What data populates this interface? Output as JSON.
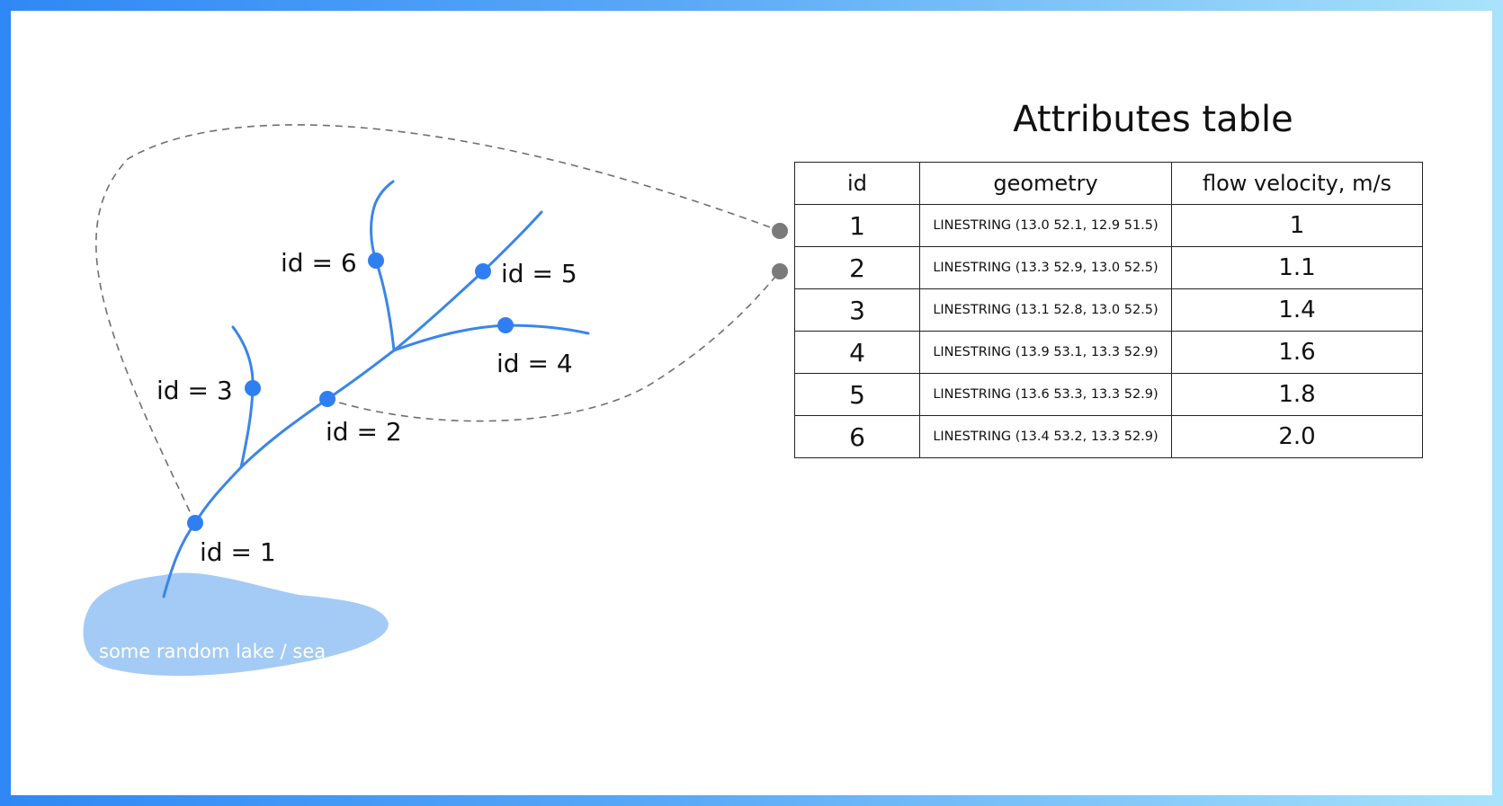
{
  "table": {
    "title": "Attributes table",
    "columns": {
      "id": "id",
      "geometry": "geometry",
      "velocity": "flow velocity, m/s"
    },
    "rows": [
      {
        "id": "1",
        "geometry": "LINESTRING (13.0 52.1, 12.9 51.5)",
        "velocity": "1"
      },
      {
        "id": "2",
        "geometry": "LINESTRING (13.3 52.9, 13.0 52.5)",
        "velocity": "1.1"
      },
      {
        "id": "3",
        "geometry": "LINESTRING (13.1 52.8, 13.0 52.5)",
        "velocity": "1.4"
      },
      {
        "id": "4",
        "geometry": "LINESTRING (13.9 53.1, 13.3 52.9)",
        "velocity": "1.6"
      },
      {
        "id": "5",
        "geometry": "LINESTRING (13.6 53.3, 13.3 52.9)",
        "velocity": "1.8"
      },
      {
        "id": "6",
        "geometry": "LINESTRING (13.4 53.2, 13.3 52.9)",
        "velocity": "2.0"
      }
    ]
  },
  "river": {
    "labels": {
      "seg1": "id = 1",
      "seg2": "id = 2",
      "seg3": "id = 3",
      "seg4": "id = 4",
      "seg5": "id = 5",
      "seg6": "id = 6"
    },
    "lake_label": "some random lake / sea"
  },
  "colors": {
    "river": "#3a86e8",
    "node": "#2f7ff2",
    "lake": "#a3cbf6",
    "connector": "#7a7a7a",
    "frame_start": "#2f88f5",
    "frame_end": "#a9e3fb"
  }
}
